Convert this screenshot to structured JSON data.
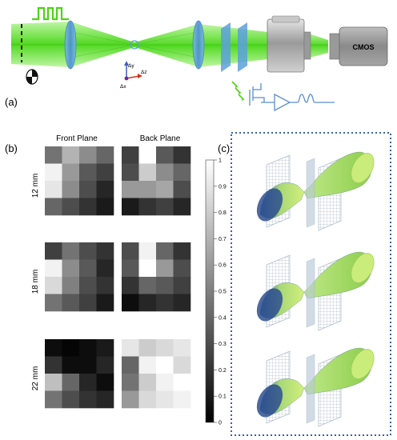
{
  "panel_labels": {
    "a": "(a)",
    "b": "(b)",
    "c": "(c)"
  },
  "setup": {
    "camera_label": "CMOS",
    "axis_labels": {
      "y": "Δy",
      "z": "Δz",
      "x": "Δx"
    }
  },
  "heatmaps": {
    "column_headers": [
      "Front Plane",
      "Back Plane"
    ],
    "row_labels": [
      "12 mm",
      "18 mm",
      "22 mm"
    ],
    "grids": [
      {
        "front": [
          [
            0.45,
            0.7,
            0.55,
            0.4
          ],
          [
            0.95,
            0.6,
            0.35,
            0.25
          ],
          [
            0.9,
            0.55,
            0.3,
            0.15
          ],
          [
            0.4,
            0.3,
            0.2,
            0.1
          ]
        ],
        "back": [
          [
            0.25,
            1.0,
            0.35,
            0.2
          ],
          [
            0.3,
            0.8,
            0.55,
            0.4
          ],
          [
            0.6,
            0.6,
            0.65,
            0.3
          ],
          [
            0.1,
            0.2,
            0.25,
            0.15
          ]
        ]
      },
      {
        "front": [
          [
            0.25,
            0.45,
            0.3,
            0.2
          ],
          [
            0.95,
            0.55,
            0.35,
            0.15
          ],
          [
            0.85,
            0.5,
            0.3,
            0.2
          ],
          [
            0.45,
            0.35,
            0.25,
            0.1
          ]
        ],
        "back": [
          [
            0.3,
            0.95,
            0.4,
            0.2
          ],
          [
            0.35,
            1.0,
            0.6,
            0.3
          ],
          [
            0.2,
            0.4,
            0.35,
            0.25
          ],
          [
            0.05,
            0.15,
            0.2,
            0.15
          ]
        ]
      },
      {
        "front": [
          [
            0.05,
            0.02,
            0.05,
            0.1
          ],
          [
            0.2,
            0.05,
            0.05,
            0.15
          ],
          [
            0.75,
            0.4,
            0.15,
            0.05
          ],
          [
            0.45,
            0.3,
            0.2,
            0.15
          ]
        ],
        "back": [
          [
            0.9,
            0.8,
            0.85,
            0.9
          ],
          [
            0.4,
            0.95,
            1.0,
            0.85
          ],
          [
            0.45,
            0.8,
            0.95,
            1.0
          ],
          [
            0.6,
            0.85,
            0.9,
            0.95
          ]
        ]
      }
    ],
    "colorbar": {
      "ticks": [
        "1",
        "0.9",
        "0.8",
        "0.7",
        "0.6",
        "0.5",
        "0.4",
        "0.3",
        "0.2",
        "0.1",
        "0"
      ]
    }
  },
  "colors": {
    "beam": "#4cd414",
    "lens": "#5aa0dc",
    "border": "#3b5fa8",
    "circuit": "#5b8fd0"
  }
}
